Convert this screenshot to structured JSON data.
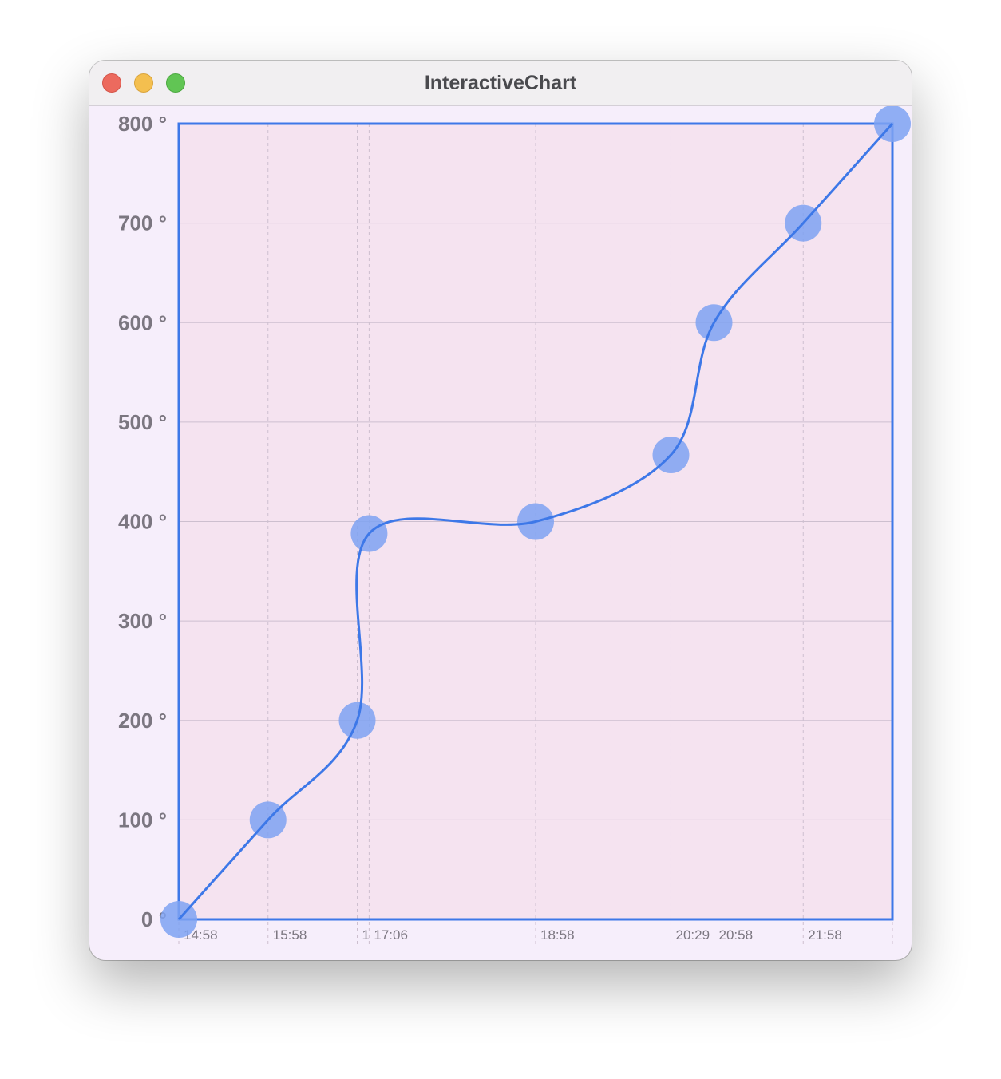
{
  "window": {
    "title": "InteractiveChart"
  },
  "colors": {
    "plot_background": "#f5e3f0",
    "line": "#3d78e8",
    "point": "#7ea2f2",
    "grid": "#cdbfcf",
    "tick_text": "#7b7680"
  },
  "chart_data": {
    "type": "line",
    "title": "",
    "xlabel": "",
    "ylabel": "",
    "curve": "smooth",
    "grid": true,
    "ylim": [
      0,
      800
    ],
    "xlim": [
      "14:58",
      "22:58"
    ],
    "y_ticks": [
      "0 °",
      "100 °",
      "200 °",
      "300 °",
      "400 °",
      "500 °",
      "600 °",
      "700 °",
      "800 °"
    ],
    "x_ticks": [
      {
        "time": "14:58",
        "label": "14:58"
      },
      {
        "time": "15:58",
        "label": "15:58"
      },
      {
        "time": "16:58",
        "label": "1"
      },
      {
        "time": "17:06",
        "label": "17:06"
      },
      {
        "time": "18:58",
        "label": "18:58"
      },
      {
        "time": "20:29",
        "label": "20:29"
      },
      {
        "time": "20:58",
        "label": "20:58"
      },
      {
        "time": "21:58",
        "label": "21:58"
      },
      {
        "time": "22:58",
        "label": ""
      }
    ],
    "series": [
      {
        "x": [
          "14:58",
          "15:58",
          "16:58",
          "17:06",
          "18:58",
          "20:29",
          "20:58",
          "21:58",
          "22:58"
        ],
        "y": [
          0,
          100,
          200,
          388,
          400,
          467,
          600,
          700,
          800
        ]
      }
    ]
  }
}
